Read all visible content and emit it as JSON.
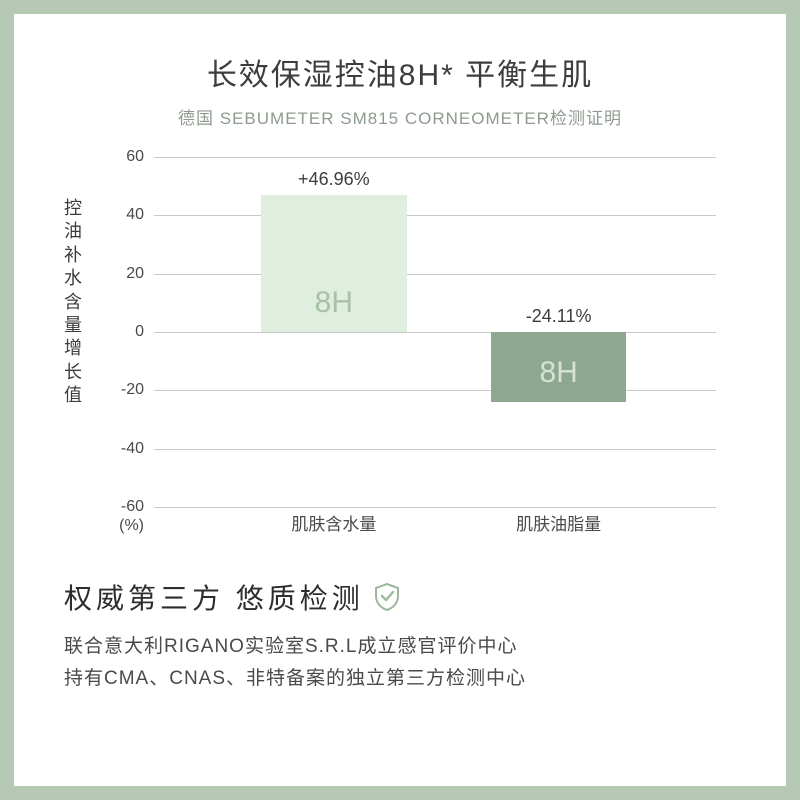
{
  "layout": {
    "border_color": "#b6c9b5",
    "background_color": "#ffffff"
  },
  "header": {
    "title": "长效保湿控油8H* 平衡生肌",
    "title_color": "#3d3d3d",
    "title_fontsize": 30,
    "subtitle": "德国  SEBUMETER SM815 CORNEOMETER检测证明",
    "subtitle_color": "#8e9a8e",
    "subtitle_fontsize": 17
  },
  "chart": {
    "type": "bar",
    "yaxis_label": "控油 补水含量增长值",
    "yaxis_label_fontsize": 18,
    "yaxis_label_color": "#3d3d3d",
    "unit": "(%)",
    "ymin": -60,
    "ymax": 60,
    "ytick_step": 20,
    "ticks": [
      60,
      40,
      20,
      0,
      -20,
      -40,
      -60
    ],
    "tick_fontsize": 16,
    "tick_color": "#4a4a4a",
    "grid_color": "#c8c8c8",
    "bars": [
      {
        "category": "肌肤含水量",
        "value": 46.96,
        "value_label": "+46.96%",
        "bar_color": "#e0eee0",
        "bar_label": "8H",
        "bar_label_color": "#a8c2a6",
        "center_pct": 32,
        "width_pct": 26
      },
      {
        "category": "肌肤油脂量",
        "value": -24.11,
        "value_label": "-24.11%",
        "bar_color": "#8ea78f",
        "bar_label": "8H",
        "bar_label_color": "#d7e2d6",
        "center_pct": 72,
        "width_pct": 24
      }
    ],
    "bar_label_fontsize": 30,
    "value_label_fontsize": 18,
    "value_label_color": "#3d3d3d",
    "cat_label_fontsize": 17,
    "cat_label_color": "#4a4a4a"
  },
  "section": {
    "title": "权威第三方 悠质检测",
    "title_fontsize": 28,
    "title_color": "#2d2d2d",
    "shield_color": "#9fb59e",
    "body_line1": "联合意大利RIGANO实验室S.R.L成立感官评价中心",
    "body_line2": "持有CMA、CNAS、非特备案的独立第三方检测中心",
    "body_fontsize": 19,
    "body_color": "#4a4a4a"
  }
}
